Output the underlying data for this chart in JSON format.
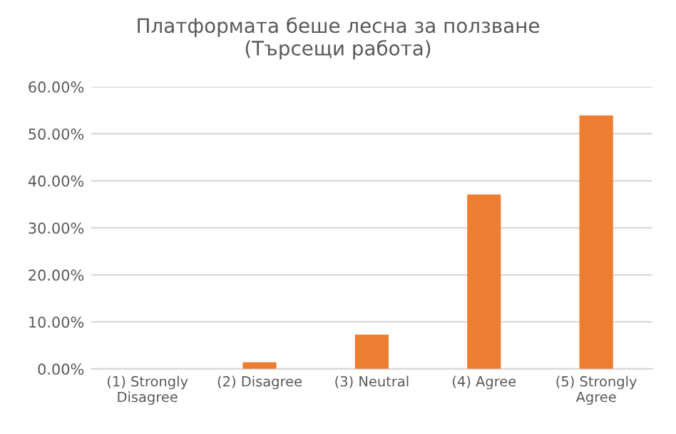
{
  "chart_data": {
    "type": "bar",
    "title": "Платформата беше лесна за ползване\n(Търсещи работа)",
    "categories": [
      "(1) Strongly\nDisagree",
      "(2) Disagree",
      "(3) Neutral",
      "(4) Agree",
      "(5) Strongly\nAgree"
    ],
    "values": [
      0,
      1.4,
      7.3,
      37.1,
      53.9
    ],
    "color": "#ed7d31",
    "ylim": [
      0,
      60
    ],
    "yticks": [
      {
        "value": 0,
        "label": "0.00%"
      },
      {
        "value": 10,
        "label": "10.00%"
      },
      {
        "value": 20,
        "label": "20.00%"
      },
      {
        "value": 30,
        "label": "30.00%"
      },
      {
        "value": 40,
        "label": "40.00%"
      },
      {
        "value": 50,
        "label": "50.00%"
      },
      {
        "value": 60,
        "label": "60.00%"
      }
    ],
    "grid": "y",
    "legend": false
  }
}
